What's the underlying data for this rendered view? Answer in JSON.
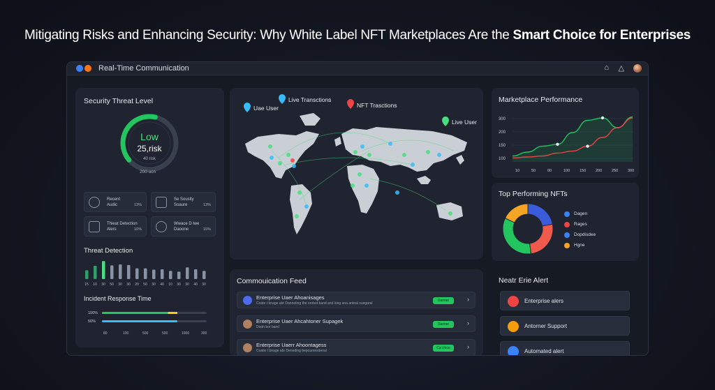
{
  "headline": {
    "part1": "Mitigating Risks and Enhancing Security: Why White Label NFT Marketplaces Are the ",
    "part2": "Smart Choice for Enterprises"
  },
  "window": {
    "title": "Real-Time Communication"
  },
  "security": {
    "title": "Security Threat Level",
    "gauge_level": "Low",
    "gauge_value": "25,risk",
    "gauge_sub": "40 risk",
    "gauge_footer": "200 ucn",
    "gauge_fraction": 0.55,
    "cards": [
      {
        "l1": "Recent",
        "l2": "Audic",
        "pct": "13%",
        "icon": "audit-icon"
      },
      {
        "l1": "Se Souslty",
        "l2": "Soaure",
        "pct": "13%",
        "icon": "security-scan-icon"
      },
      {
        "l1": "Thieat Detection",
        "l2": "Alers",
        "pct": "10%",
        "icon": "threat-icon"
      },
      {
        "l1": "Wwace D lwe",
        "l2": "Daoone",
        "pct": "15%",
        "icon": "shield-icon"
      }
    ],
    "threat_title": "Threat Detection",
    "threat_bars": [
      {
        "label": "15",
        "value": 0.45,
        "color": "#2f9f6a"
      },
      {
        "label": "10",
        "value": 0.68,
        "color": "#2f9f6a"
      },
      {
        "label": "30",
        "value": 0.92,
        "color": "#4ade80"
      },
      {
        "label": "50",
        "value": 0.7,
        "color": "#8a93a4"
      },
      {
        "label": "30",
        "value": 0.75,
        "color": "#8a93a4"
      },
      {
        "label": "30",
        "value": 0.72,
        "color": "#8a93a4"
      },
      {
        "label": "20",
        "value": 0.55,
        "color": "#8a93a4"
      },
      {
        "label": "50",
        "value": 0.55,
        "color": "#8a93a4"
      },
      {
        "label": "30",
        "value": 0.48,
        "color": "#8a93a4"
      },
      {
        "label": "40",
        "value": 0.5,
        "color": "#8a93a4"
      },
      {
        "label": "10",
        "value": 0.42,
        "color": "#8a93a4"
      },
      {
        "label": "30",
        "value": 0.38,
        "color": "#8a93a4"
      },
      {
        "label": "30",
        "value": 0.6,
        "color": "#8a93a4"
      },
      {
        "label": "40",
        "value": 0.5,
        "color": "#8a93a4"
      },
      {
        "label": "30",
        "value": 0.42,
        "color": "#8a93a4"
      }
    ],
    "incident_title": "Incident Response Time",
    "incident_rows": [
      {
        "label": "100%",
        "fill": 0.72,
        "accent": 0.09
      },
      {
        "label": "50%",
        "fill": 0.72,
        "accent": 0
      }
    ],
    "incident_ticks": [
      "80",
      "100",
      "500",
      "500",
      "1000",
      "300"
    ]
  },
  "map": {
    "labels": [
      {
        "text": "Uae User",
        "color": "#38bdf8"
      },
      {
        "text": "Live Transctions",
        "color": "#38bdf8"
      },
      {
        "text": "NFT Trasctions",
        "color": "#ef4444"
      },
      {
        "text": "Live User",
        "color": "#4ade80"
      }
    ]
  },
  "marketplace": {
    "title": "Marketplace Performance",
    "chart_data": {
      "type": "line",
      "y_ticks": [
        "300",
        "200",
        "150",
        "100"
      ],
      "x_ticks": [
        "10",
        "50",
        "00",
        "100",
        "150",
        "200",
        "250",
        "300"
      ],
      "series": [
        {
          "values": [
            0.12,
            0.2,
            0.32,
            0.36,
            0.6,
            0.85,
            0.9,
            0.7,
            0.92
          ]
        },
        {
          "values": [
            0.08,
            0.1,
            0.12,
            0.18,
            0.22,
            0.32,
            0.5,
            0.7,
            0.9
          ]
        }
      ]
    }
  },
  "top_nfts": {
    "title": "Top Performing NFTs",
    "chart_data": {
      "type": "pie",
      "slices": [
        {
          "value": 0.22,
          "color": "#3b5bdb"
        },
        {
          "value": 0.26,
          "color": "#ef5a4c"
        },
        {
          "value": 0.34,
          "color": "#22c55e"
        },
        {
          "value": 0.18,
          "color": "#f5a524"
        }
      ]
    },
    "legend": [
      {
        "label": "Dagen",
        "color": "#3b82f6"
      },
      {
        "label": "Rages",
        "color": "#ef4444"
      },
      {
        "label": "Dopdisdee",
        "color": "#3b82f6"
      },
      {
        "label": "Hgne",
        "color": "#f5a524"
      }
    ]
  },
  "feed": {
    "title": "Commouication Feed",
    "items": [
      {
        "title": "Enterprise Uaer Ahoanisages",
        "sub": "Coate t bnage abr Danneting the oroted band and long ana anteal suegaral",
        "badge": "Danner",
        "icon_color": "#4f6bed"
      },
      {
        "title": "Enterprise Uaer Ahcahtoner Supagek",
        "sub": "Dodn bor barel",
        "badge": "Danner",
        "icon_color": "#b08060"
      },
      {
        "title": "Enterprise Uaerr Ahoontagess",
        "sub": "Coatie t bnage abr Deneding bepoumesdenal",
        "badge": "Ca Unco",
        "icon_color": "#b08060"
      }
    ]
  },
  "alerts": {
    "title": "Neatr Erie Alert",
    "items": [
      {
        "label": "Enterprise alers",
        "color": "#ef4444"
      },
      {
        "label": "Antorner Support",
        "color": "#f59e0b"
      },
      {
        "label": "Automated alert",
        "color": "#3b82f6"
      }
    ]
  }
}
